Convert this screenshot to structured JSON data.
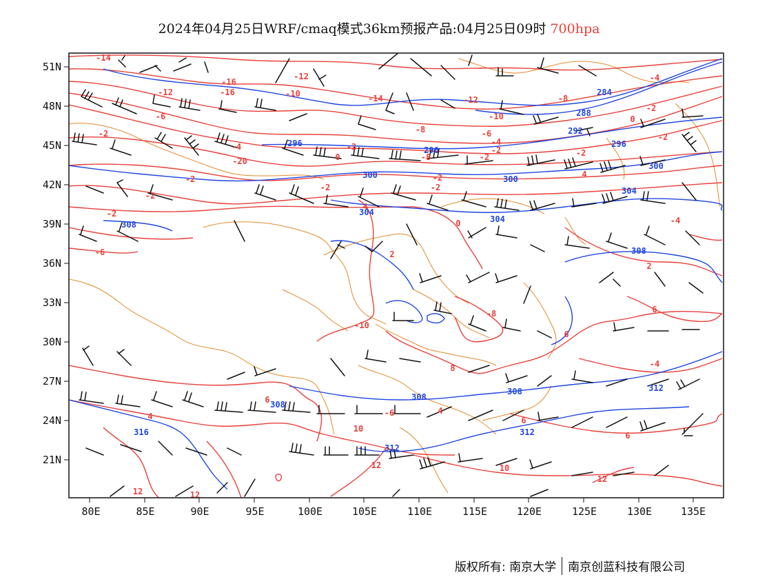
{
  "title": {
    "main": "2024年04月25日WRF/cmaq模式36km预报产品:04月25日09时",
    "level": "700hpa"
  },
  "axes": {
    "lat_labels": [
      "51N",
      "48N",
      "45N",
      "42N",
      "39N",
      "36N",
      "33N",
      "30N",
      "27N",
      "24N",
      "21N"
    ],
    "lon_labels": [
      "80E",
      "85E",
      "90E",
      "95E",
      "100E",
      "105E",
      "110E",
      "115E",
      "120E",
      "125E",
      "130E",
      "135E"
    ]
  },
  "temperature_labels": [
    "-14",
    "-12",
    "-12",
    "-16",
    "-16",
    "-10",
    "-14",
    "-12",
    "-8",
    "-10",
    "-6",
    "-8",
    "-4",
    "-2",
    "-2",
    "-6",
    "-2",
    "-4",
    "-2",
    "-2",
    "0",
    "-2",
    "-2",
    "-4",
    "-20",
    "0",
    "-8",
    "-2",
    "-2",
    "-2",
    "-2",
    "4",
    "-2",
    "4",
    "-4",
    "0",
    "-2",
    "2",
    "2",
    "-6",
    "-8",
    "-10",
    "6",
    "6",
    "8",
    "-4",
    "4",
    "6",
    "6",
    "6",
    "4",
    "-6",
    "10",
    "12",
    "10",
    "12",
    "12",
    "12",
    "8",
    "-8",
    "8",
    "12",
    "10",
    "12",
    "12"
  ],
  "height_labels": [
    "284",
    "288",
    "292",
    "296",
    "296",
    "296",
    "300",
    "300",
    "300",
    "304",
    "304",
    "304",
    "308",
    "308",
    "308",
    "308",
    "308",
    "312",
    "312",
    "312",
    "316"
  ],
  "colors": {
    "temperature": "#e8403a",
    "height": "#1f45e0",
    "boundary": "#e08a2a",
    "wind": "#111111",
    "title_level": "#e8403a"
  },
  "footer": {
    "left": "版权所有: 南京大学",
    "right": "南京创蓝科技有限公司"
  }
}
